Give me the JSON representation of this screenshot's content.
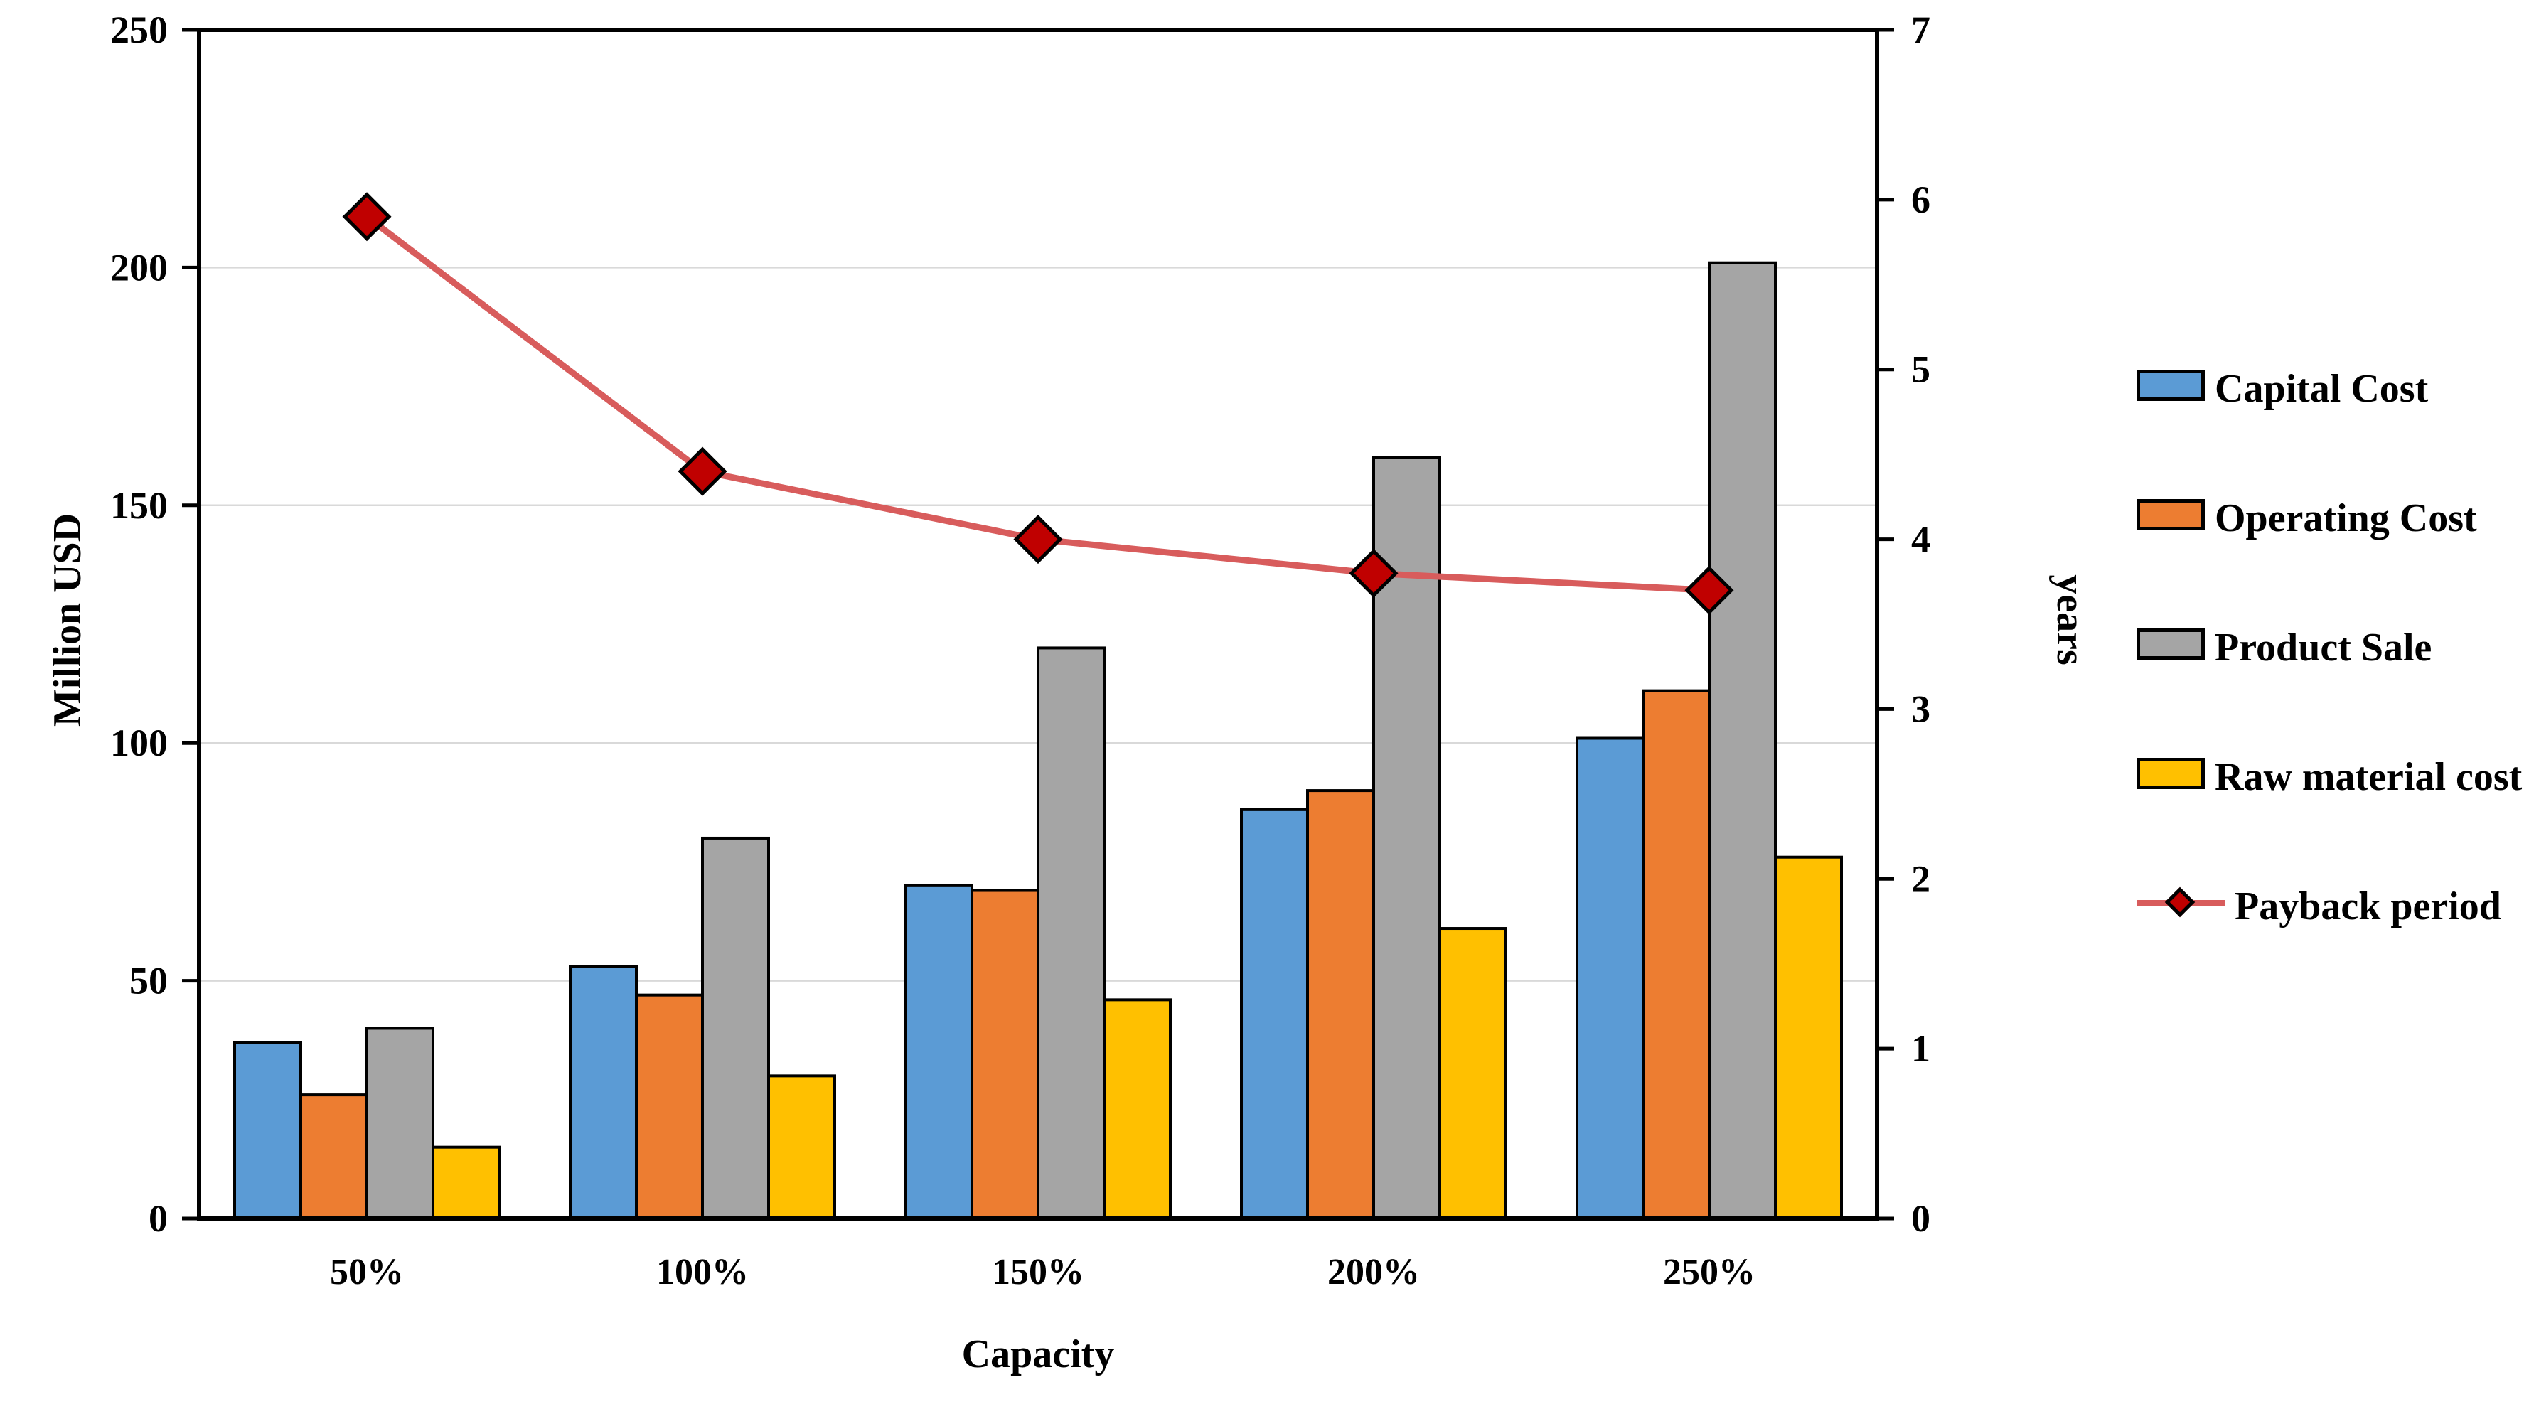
{
  "figure": {
    "background": "#FFFFFF",
    "plot_border_color": "#000000",
    "gridline_color": "#D9D9D9"
  },
  "axes": {
    "x": {
      "title": "Capacity",
      "categories": [
        "50%",
        "100%",
        "150%",
        "200%",
        "250%"
      ]
    },
    "y_left": {
      "title": "Million USD",
      "min": 0,
      "max": 250,
      "step": 50,
      "tick_labels": [
        "0",
        "50",
        "100",
        "150",
        "200",
        "250"
      ]
    },
    "y_right": {
      "title": "years",
      "min": 0,
      "max": 7,
      "step": 1,
      "tick_labels": [
        "0",
        "1",
        "2",
        "3",
        "4",
        "5",
        "6",
        "7"
      ]
    }
  },
  "chart_data": {
    "type": "bar",
    "subtype": "clustered-bar-with-line",
    "categories": [
      "50%",
      "100%",
      "150%",
      "200%",
      "250%"
    ],
    "series": [
      {
        "name": "Capital Cost",
        "type": "bar",
        "axis": "left",
        "color": "#5B9BD5",
        "values": [
          37,
          53,
          70,
          86,
          101
        ]
      },
      {
        "name": "Operating Cost",
        "type": "bar",
        "axis": "left",
        "color": "#ED7D31",
        "values": [
          26,
          47,
          69,
          90,
          111
        ]
      },
      {
        "name": "Product Sale",
        "type": "bar",
        "axis": "left",
        "color": "#A5A5A5",
        "values": [
          40,
          80,
          120,
          160,
          201
        ]
      },
      {
        "name": "Raw material cost",
        "type": "bar",
        "axis": "left",
        "color": "#FFC000",
        "values": [
          15,
          30,
          46,
          61,
          76
        ]
      },
      {
        "name": "Payback period",
        "type": "line",
        "axis": "right",
        "color": "#D85C5C",
        "marker": "diamond",
        "marker_color": "#C00000",
        "values": [
          5.9,
          4.4,
          4.0,
          3.8,
          3.7
        ]
      }
    ],
    "xlabel": "Capacity",
    "ylabel_left": "Million USD",
    "ylabel_right": "years",
    "ylim_left": [
      0,
      250
    ],
    "ylim_right": [
      0,
      7
    ],
    "grid": true,
    "legend_position": "right"
  }
}
